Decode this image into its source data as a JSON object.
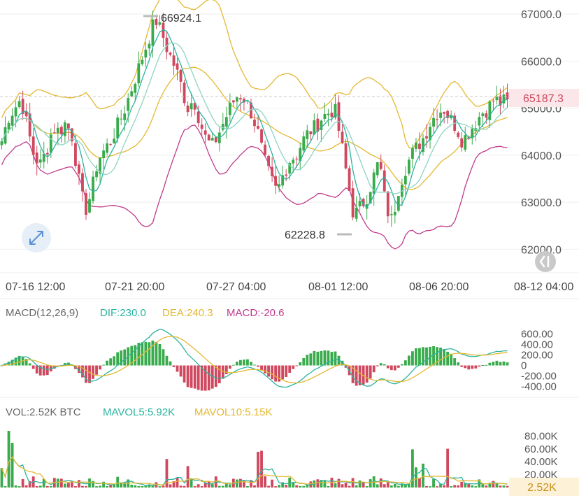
{
  "chart_data": [
    {
      "type": "candlestick",
      "name": "price",
      "ylim": [
        61500,
        67300
      ],
      "y_ticks": [
        "67000.0",
        "66000.0",
        "65000.0",
        "64000.0",
        "63000.0",
        "62000.0"
      ],
      "y_tick_values": [
        67000,
        66000,
        65000,
        64000,
        63000,
        62000
      ],
      "x_ticks": [
        "07-16 12:00",
        "07-21 20:00",
        "07-27 04:00",
        "08-01 12:00",
        "08-06 20:00",
        "08-12 04:00"
      ],
      "high_label": "66924.1",
      "low_label": "62228.8",
      "high_value": 66924.1,
      "low_value": 62228.8,
      "last_price": "65187.3",
      "last_price_value": 65187.3,
      "close_path": [
        64300,
        64800,
        65000,
        65200,
        64600,
        64000,
        63800,
        64100,
        64600,
        64500,
        64700,
        64400,
        63500,
        62800,
        63200,
        63900,
        64100,
        64300,
        64600,
        64900,
        65300,
        65700,
        66100,
        66500,
        66900,
        66600,
        66200,
        65900,
        65500,
        65000,
        65200,
        64700,
        64300,
        64200,
        64500,
        64800,
        65100,
        65300,
        65200,
        64900,
        64500,
        63900,
        63500,
        63200,
        63600,
        63900,
        64000,
        64300,
        64500,
        64600,
        64800,
        64900,
        65000,
        64300,
        63500,
        62700,
        62900,
        63100,
        63500,
        63900,
        62900,
        62600,
        63300,
        63700,
        64000,
        64200,
        64400,
        64700,
        64900,
        65000,
        64800,
        64600,
        64300,
        64500,
        64700,
        64900,
        65000,
        65200,
        65100,
        65187
      ],
      "colors": {
        "up": "#3aab4c",
        "down": "#d0485e",
        "ma5": "#2bb3a0",
        "ma10": "#8fd4c4",
        "boll_up": "#e4b832",
        "boll_mid": "#e4b832",
        "boll_low": "#c03b8b"
      }
    },
    {
      "type": "macd",
      "name": "MACD",
      "ylim": [
        -500,
        700
      ],
      "y_ticks": [
        "600.00",
        "400.00",
        "200.00",
        "0",
        "-200.00",
        "-400.00"
      ],
      "y_tick_values": [
        600,
        400,
        200,
        0,
        -200,
        -400
      ],
      "colors": {
        "dif": "#2bb3a0",
        "dea": "#e4b832",
        "pos": "#3aab4c",
        "neg": "#d0485e"
      }
    },
    {
      "type": "volume",
      "name": "VOL",
      "ylim": [
        0,
        100000
      ],
      "y_ticks": [
        "80.00K",
        "60.00K",
        "40.00K",
        "20.00K"
      ],
      "y_tick_values": [
        80000,
        60000,
        40000,
        20000
      ],
      "last_volume": "2.52K",
      "colors": {
        "up": "#3aab4c",
        "down": "#d0485e",
        "mavol5": "#2bb3a0",
        "mavol10": "#e4b832"
      }
    }
  ],
  "macd_legend": {
    "title": "MACD(12,26,9)",
    "dif": "DIF:230.0",
    "dea": "DEA:240.3",
    "macd": "MACD:-20.6"
  },
  "vol_legend": {
    "title": "VOL:2.52K BTC",
    "mavol5": "MAVOL5:5.92K",
    "mavol10": "MAVOL10:5.15K"
  },
  "icons": {
    "expand": "expand-arrows-icon",
    "scroll_start": "double-chevron-left-icon"
  },
  "colors": {
    "grid": "#ececec",
    "text": "#555555",
    "price_tag_bg": "#fbe7e9",
    "price_tag_text": "#d0485e",
    "vol_tag_bg": "#fdf1d8",
    "vol_tag_text": "#c9901a",
    "macd_title": "#666666"
  }
}
